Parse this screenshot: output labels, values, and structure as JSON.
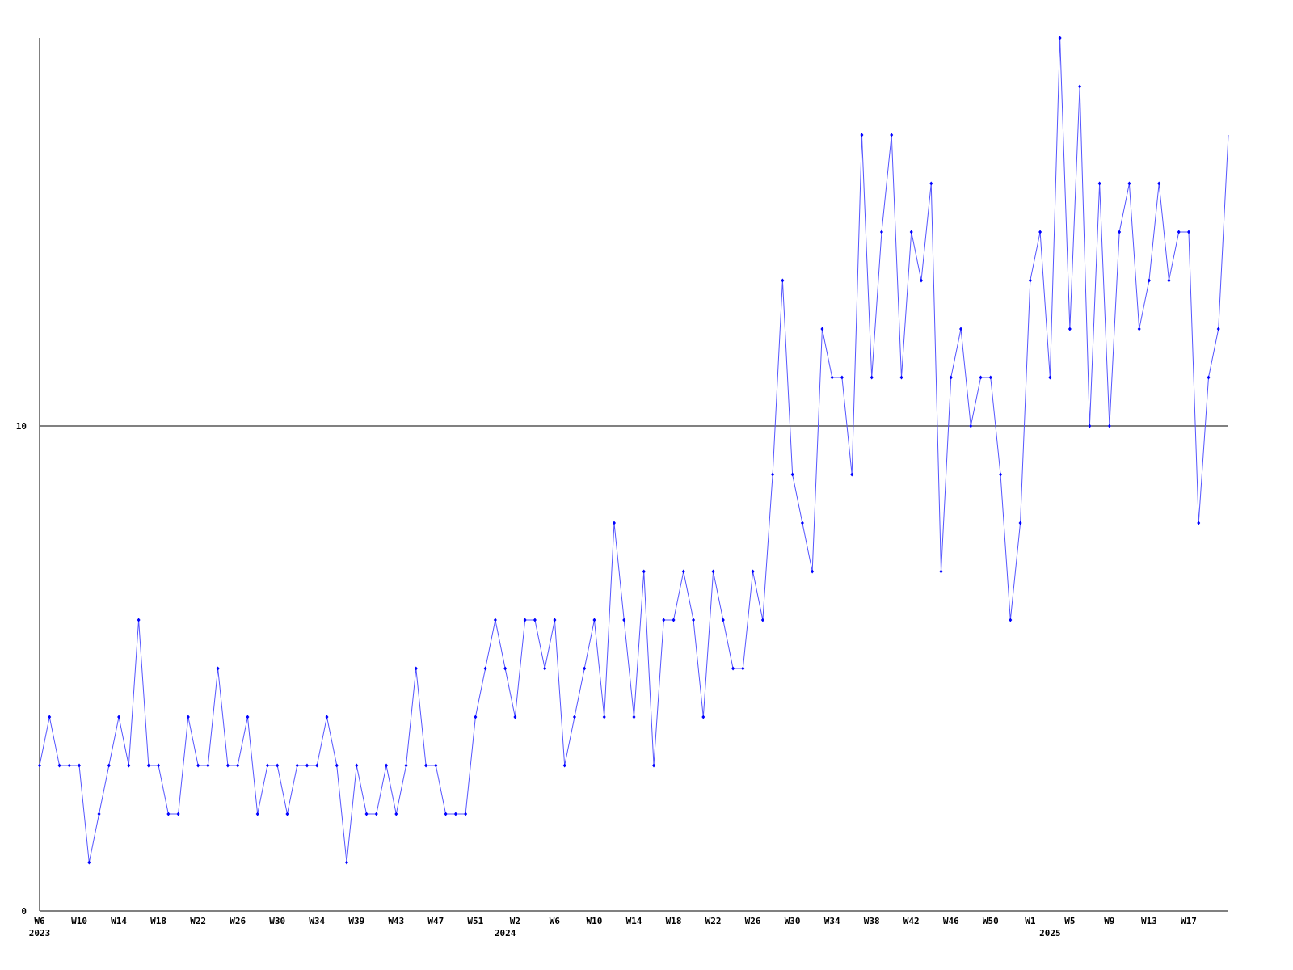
{
  "chart_data": {
    "type": "line",
    "categories": [
      "W6",
      null,
      null,
      null,
      "W10",
      null,
      null,
      null,
      "W14",
      null,
      null,
      null,
      "W18",
      null,
      null,
      null,
      "W22",
      null,
      null,
      null,
      "W26",
      null,
      null,
      null,
      "W30",
      null,
      null,
      null,
      "W34",
      null,
      null,
      null,
      "W39",
      null,
      null,
      null,
      "W43",
      null,
      null,
      null,
      "W47",
      null,
      null,
      null,
      "W51",
      null,
      null,
      null,
      "W2",
      null,
      null,
      null,
      "W6",
      null,
      null,
      null,
      "W10",
      null,
      null,
      null,
      "W14",
      null,
      null,
      null,
      "W18",
      null,
      null,
      null,
      "W22",
      null,
      null,
      null,
      "W26",
      null,
      null,
      null,
      "W30",
      null,
      null,
      null,
      "W34",
      null,
      null,
      null,
      "W38",
      null,
      null,
      null,
      "W42",
      null,
      null,
      null,
      "W46",
      null,
      null,
      null,
      "W50",
      null,
      null,
      null,
      "W1",
      null,
      null,
      null,
      "W5",
      null,
      null,
      null,
      "W9",
      null,
      null,
      null,
      "W13",
      null,
      null,
      null,
      "W17",
      null,
      null,
      null,
      null
    ],
    "year_labels": [
      "2023",
      null,
      null,
      null,
      null,
      null,
      null,
      null,
      null,
      null,
      null,
      null,
      null,
      null,
      null,
      null,
      null,
      null,
      null,
      null,
      null,
      null,
      null,
      null,
      null,
      null,
      null,
      null,
      null,
      null,
      null,
      null,
      null,
      null,
      null,
      null,
      null,
      null,
      null,
      null,
      null,
      null,
      null,
      null,
      null,
      null,
      null,
      "2024",
      null,
      null,
      null,
      null,
      null,
      null,
      null,
      null,
      null,
      null,
      null,
      null,
      null,
      null,
      null,
      null,
      null,
      null,
      null,
      null,
      null,
      null,
      null,
      null,
      null,
      null,
      null,
      null,
      null,
      null,
      null,
      null,
      null,
      null,
      null,
      null,
      null,
      null,
      null,
      null,
      null,
      null,
      null,
      null,
      null,
      null,
      null,
      null,
      null,
      null,
      null,
      null,
      null,
      null,
      "2025",
      null,
      null,
      null,
      null,
      null,
      null,
      null,
      null,
      null,
      null,
      null,
      null,
      null,
      null,
      null,
      null,
      null,
      null,
      null,
      null,
      null
    ],
    "series": [
      {
        "color": "#0000ff",
        "values": [
          3,
          4,
          3,
          3,
          3,
          1,
          2,
          3,
          4,
          3,
          6,
          3,
          3,
          2,
          2,
          4,
          3,
          3,
          5,
          3,
          3,
          4,
          2,
          3,
          3,
          2,
          3,
          3,
          3,
          4,
          3,
          1,
          3,
          2,
          2,
          3,
          2,
          3,
          5,
          3,
          3,
          2,
          2,
          2,
          4,
          5,
          6,
          5,
          4,
          6,
          6,
          5,
          6,
          3,
          4,
          5,
          6,
          4,
          8,
          6,
          4,
          7,
          3,
          6,
          6,
          7,
          6,
          4,
          7,
          6,
          5,
          5,
          7,
          6,
          9,
          13,
          9,
          8,
          7,
          12,
          11,
          11,
          9,
          16,
          11,
          14,
          16,
          11,
          14,
          13,
          15,
          7,
          11,
          12,
          10,
          11,
          11,
          9,
          6,
          8,
          13,
          14,
          11,
          18,
          12,
          17,
          10,
          15,
          10,
          14,
          15,
          12,
          13,
          15,
          13,
          14,
          14,
          8,
          11,
          12,
          16
        ]
      }
    ],
    "ylim": [
      0,
      18
    ],
    "yticks": [
      0,
      10
    ],
    "grid": true
  }
}
